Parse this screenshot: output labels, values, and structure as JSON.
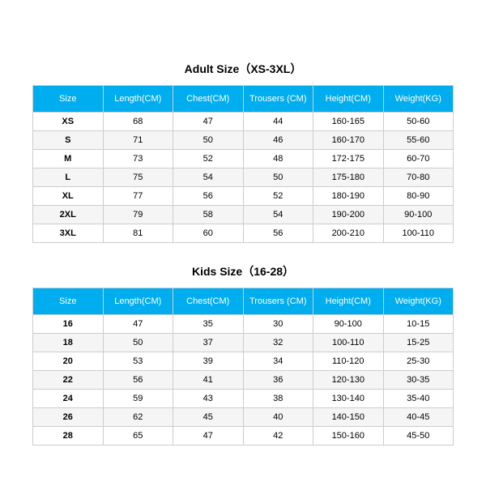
{
  "adult": {
    "title": "Adult Size（XS-3XL）",
    "header_bg": "#00aeef",
    "header_fg": "#ffffff",
    "border_color": "#cccccc",
    "alt_row_bg": "#f5f5f5",
    "columns": [
      "Size",
      "Length(CM)",
      "Chest(CM)",
      "Trousers (CM)",
      "Height(CM)",
      "Weight(KG)"
    ],
    "rows": [
      [
        "XS",
        "68",
        "47",
        "44",
        "160-165",
        "50-60"
      ],
      [
        "S",
        "71",
        "50",
        "46",
        "160-170",
        "55-60"
      ],
      [
        "M",
        "73",
        "52",
        "48",
        "172-175",
        "60-70"
      ],
      [
        "L",
        "75",
        "54",
        "50",
        "175-180",
        "70-80"
      ],
      [
        "XL",
        "77",
        "56",
        "52",
        "180-190",
        "80-90"
      ],
      [
        "2XL",
        "79",
        "58",
        "54",
        "190-200",
        "90-100"
      ],
      [
        "3XL",
        "81",
        "60",
        "56",
        "200-210",
        "100-110"
      ]
    ]
  },
  "kids": {
    "title": "Kids Size（16-28）",
    "header_bg": "#00aeef",
    "header_fg": "#ffffff",
    "border_color": "#cccccc",
    "alt_row_bg": "#f5f5f5",
    "columns": [
      "Size",
      "Length(CM)",
      "Chest(CM)",
      "Trousers (CM)",
      "Height(CM)",
      "Weight(KG)"
    ],
    "rows": [
      [
        "16",
        "47",
        "35",
        "30",
        "90-100",
        "10-15"
      ],
      [
        "18",
        "50",
        "37",
        "32",
        "100-110",
        "15-25"
      ],
      [
        "20",
        "53",
        "39",
        "34",
        "110-120",
        "25-30"
      ],
      [
        "22",
        "56",
        "41",
        "36",
        "120-130",
        "30-35"
      ],
      [
        "24",
        "59",
        "43",
        "38",
        "130-140",
        "35-40"
      ],
      [
        "26",
        "62",
        "45",
        "40",
        "140-150",
        "40-45"
      ],
      [
        "28",
        "65",
        "47",
        "42",
        "150-160",
        "45-50"
      ]
    ]
  }
}
